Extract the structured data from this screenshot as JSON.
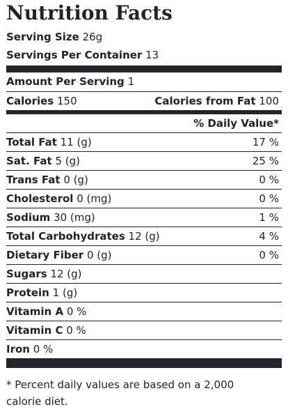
{
  "title": "Nutrition Facts",
  "serving": {
    "size_label": "Serving Size",
    "size": "26g",
    "per_container_label": "Servings Per Container",
    "per_container": "13"
  },
  "amount_per_serving": {
    "label": "Amount Per Serving",
    "value": "1"
  },
  "calories": {
    "label": "Calories",
    "value": "150",
    "fat_label": "Calories from Fat",
    "fat_value": "100"
  },
  "daily_value_header": "% Daily Value*",
  "rows": [
    {
      "label": "Total Fat",
      "amount": "11 (g)",
      "daily": "17 %"
    },
    {
      "label": "Sat. Fat",
      "amount": "5 (g)",
      "daily": "25 %"
    },
    {
      "label": "Trans Fat",
      "amount": "0 (g)",
      "daily": "0 %"
    },
    {
      "label": "Cholesterol",
      "amount": "0 (mg)",
      "daily": "0 %"
    },
    {
      "label": "Sodium",
      "amount": "30 (mg)",
      "daily": "1 %"
    },
    {
      "label": "Total Carbohydrates",
      "amount": "12 (g)",
      "daily": "4 %"
    },
    {
      "label": "Dietary Fiber",
      "amount": "0 (g)",
      "daily": "0 %"
    },
    {
      "label": "Sugars",
      "amount": "12 (g)"
    },
    {
      "label": "Protein",
      "amount": "1 (g)"
    },
    {
      "label": "Vitamin A",
      "amount": "0 %"
    },
    {
      "label": "Vitamin C",
      "amount": "0 %"
    },
    {
      "label": "Iron",
      "amount": "0 %"
    }
  ],
  "footnote": "* Percent daily values are based on a 2,000 calorie diet."
}
